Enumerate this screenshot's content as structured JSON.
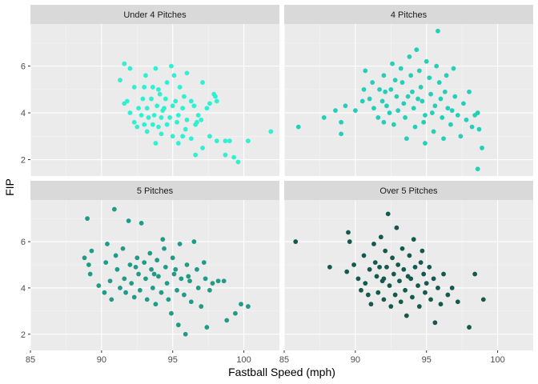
{
  "chart_data": {
    "type": "scatter",
    "xlabel": "Fastball Speed (mph)",
    "ylabel": "FIP",
    "xlim": [
      85,
      102.5
    ],
    "ylim": [
      1.3,
      7.8
    ],
    "x_ticks": [
      85,
      90,
      95,
      100
    ],
    "y_ticks": [
      2,
      4,
      6
    ],
    "grid": true,
    "legend": "none",
    "panels": [
      {
        "name": "Under 4 Pitches",
        "color": "#2ff0d0",
        "points": [
          [
            91.3,
            5.4
          ],
          [
            91.6,
            6.1
          ],
          [
            92.0,
            5.9
          ],
          [
            93.1,
            5.6
          ],
          [
            93.8,
            5.9
          ],
          [
            94.9,
            6.0
          ],
          [
            95.1,
            5.6
          ],
          [
            96.0,
            5.7
          ],
          [
            92.3,
            5.1
          ],
          [
            93.0,
            5.1
          ],
          [
            93.6,
            5.1
          ],
          [
            94.0,
            5.0
          ],
          [
            94.6,
            5.3
          ],
          [
            95.5,
            5.1
          ],
          [
            97.1,
            5.3
          ],
          [
            97.9,
            4.8
          ],
          [
            91.8,
            4.5
          ],
          [
            92.9,
            4.6
          ],
          [
            93.5,
            4.6
          ],
          [
            94.1,
            4.8
          ],
          [
            94.5,
            4.6
          ],
          [
            95.2,
            4.5
          ],
          [
            96.3,
            4.5
          ],
          [
            97.6,
            4.4
          ],
          [
            98.0,
            4.7
          ],
          [
            91.6,
            4.4
          ],
          [
            92.6,
            4.2
          ],
          [
            93.2,
            4.2
          ],
          [
            93.9,
            4.3
          ],
          [
            94.4,
            4.2
          ],
          [
            95.0,
            4.3
          ],
          [
            95.7,
            4.2
          ],
          [
            96.5,
            4.3
          ],
          [
            97.4,
            4.2
          ],
          [
            98.1,
            4.5
          ],
          [
            92.0,
            4.0
          ],
          [
            92.8,
            3.9
          ],
          [
            93.3,
            3.8
          ],
          [
            93.7,
            3.9
          ],
          [
            94.2,
            3.8
          ],
          [
            94.8,
            3.8
          ],
          [
            95.4,
            3.9
          ],
          [
            96.0,
            3.7
          ],
          [
            96.8,
            3.9
          ],
          [
            97.0,
            3.7
          ],
          [
            92.3,
            3.6
          ],
          [
            93.0,
            3.5
          ],
          [
            93.6,
            3.5
          ],
          [
            94.0,
            3.4
          ],
          [
            94.6,
            3.5
          ],
          [
            95.3,
            3.6
          ],
          [
            95.9,
            3.3
          ],
          [
            96.6,
            3.5
          ],
          [
            96.7,
            3.6
          ],
          [
            93.2,
            3.2
          ],
          [
            94.2,
            3.1
          ],
          [
            95.0,
            3.0
          ],
          [
            95.7,
            3.0
          ],
          [
            96.3,
            2.9
          ],
          [
            97.6,
            3.0
          ],
          [
            98.1,
            2.8
          ],
          [
            93.8,
            2.7
          ],
          [
            95.4,
            2.7
          ],
          [
            97.1,
            2.5
          ],
          [
            96.6,
            2.2
          ],
          [
            98.7,
            2.8
          ],
          [
            99.0,
            2.8
          ],
          [
            98.7,
            2.2
          ],
          [
            99.3,
            2.1
          ],
          [
            99.6,
            1.9
          ],
          [
            100.3,
            2.8
          ],
          [
            101.9,
            3.2
          ],
          [
            92.5,
            3.4
          ],
          [
            94.3,
            4.1
          ],
          [
            95.8,
            4.7
          ]
        ]
      },
      {
        "name": "4 Pitches",
        "color": "#25cfb7",
        "points": [
          [
            86.0,
            3.4
          ],
          [
            87.8,
            3.8
          ],
          [
            88.6,
            4.1
          ],
          [
            89.0,
            3.1
          ],
          [
            89.3,
            4.3
          ],
          [
            89.0,
            3.6
          ],
          [
            90.0,
            4.1
          ],
          [
            90.5,
            4.5
          ],
          [
            90.6,
            5.0
          ],
          [
            90.7,
            5.8
          ],
          [
            91.2,
            5.3
          ],
          [
            91.0,
            4.6
          ],
          [
            91.3,
            4.2
          ],
          [
            91.6,
            3.8
          ],
          [
            91.7,
            5.0
          ],
          [
            92.0,
            5.6
          ],
          [
            92.1,
            4.9
          ],
          [
            92.2,
            4.3
          ],
          [
            92.0,
            3.6
          ],
          [
            92.4,
            4.0
          ],
          [
            92.6,
            6.1
          ],
          [
            92.8,
            5.4
          ],
          [
            92.9,
            4.7
          ],
          [
            92.7,
            3.5
          ],
          [
            93.0,
            4.1
          ],
          [
            93.2,
            5.9
          ],
          [
            93.3,
            5.3
          ],
          [
            93.4,
            4.4
          ],
          [
            93.5,
            3.8
          ],
          [
            93.6,
            2.9
          ],
          [
            93.8,
            6.4
          ],
          [
            93.9,
            5.6
          ],
          [
            94.0,
            4.9
          ],
          [
            94.1,
            4.2
          ],
          [
            94.2,
            3.4
          ],
          [
            94.3,
            6.7
          ],
          [
            94.5,
            5.8
          ],
          [
            94.6,
            5.1
          ],
          [
            94.7,
            4.5
          ],
          [
            94.8,
            3.6
          ],
          [
            94.9,
            2.7
          ],
          [
            95.0,
            6.2
          ],
          [
            95.2,
            5.5
          ],
          [
            95.3,
            4.8
          ],
          [
            95.4,
            4.0
          ],
          [
            95.5,
            3.2
          ],
          [
            95.7,
            6.0
          ],
          [
            95.8,
            7.5
          ],
          [
            95.9,
            5.3
          ],
          [
            96.0,
            4.6
          ],
          [
            96.1,
            3.8
          ],
          [
            96.2,
            2.9
          ],
          [
            96.4,
            5.6
          ],
          [
            96.5,
            4.2
          ],
          [
            96.7,
            3.5
          ],
          [
            96.9,
            5.9
          ],
          [
            97.0,
            4.7
          ],
          [
            97.2,
            3.9
          ],
          [
            97.4,
            3.0
          ],
          [
            97.6,
            4.4
          ],
          [
            97.8,
            3.7
          ],
          [
            98.0,
            4.9
          ],
          [
            98.2,
            3.4
          ],
          [
            98.4,
            3.9
          ],
          [
            98.6,
            4.0
          ],
          [
            98.7,
            3.3
          ],
          [
            98.9,
            2.5
          ],
          [
            98.6,
            1.6
          ],
          [
            92.5,
            5.0
          ],
          [
            94.4,
            4.6
          ],
          [
            95.6,
            4.3
          ],
          [
            93.7,
            4.7
          ],
          [
            96.3,
            4.9
          ],
          [
            91.9,
            4.5
          ],
          [
            94.9,
            3.9
          ],
          [
            96.8,
            4.1
          ]
        ]
      },
      {
        "name": "5 Pitches",
        "color": "#219a87",
        "points": [
          [
            88.8,
            5.3
          ],
          [
            89.0,
            7.0
          ],
          [
            89.1,
            5.0
          ],
          [
            89.2,
            4.6
          ],
          [
            89.3,
            5.6
          ],
          [
            89.8,
            4.1
          ],
          [
            90.2,
            3.8
          ],
          [
            90.3,
            5.1
          ],
          [
            90.4,
            5.9
          ],
          [
            90.6,
            4.3
          ],
          [
            90.7,
            3.5
          ],
          [
            90.9,
            7.4
          ],
          [
            91.0,
            5.4
          ],
          [
            91.1,
            4.8
          ],
          [
            91.3,
            4.0
          ],
          [
            91.5,
            5.7
          ],
          [
            91.6,
            4.4
          ],
          [
            91.7,
            3.8
          ],
          [
            91.9,
            6.9
          ],
          [
            92.0,
            5.0
          ],
          [
            92.1,
            4.2
          ],
          [
            92.3,
            3.6
          ],
          [
            92.5,
            5.3
          ],
          [
            92.6,
            4.6
          ],
          [
            92.7,
            3.9
          ],
          [
            92.8,
            6.8
          ],
          [
            93.0,
            5.1
          ],
          [
            93.1,
            4.4
          ],
          [
            93.2,
            3.5
          ],
          [
            93.4,
            5.5
          ],
          [
            93.5,
            4.8
          ],
          [
            93.6,
            4.0
          ],
          [
            93.8,
            3.3
          ],
          [
            93.9,
            5.2
          ],
          [
            94.0,
            4.5
          ],
          [
            94.2,
            3.8
          ],
          [
            94.3,
            6.1
          ],
          [
            94.5,
            4.9
          ],
          [
            94.6,
            4.2
          ],
          [
            94.7,
            3.5
          ],
          [
            94.9,
            2.9
          ],
          [
            95.0,
            5.3
          ],
          [
            95.1,
            4.6
          ],
          [
            95.3,
            3.9
          ],
          [
            95.4,
            2.4
          ],
          [
            95.5,
            5.9
          ],
          [
            95.6,
            4.4
          ],
          [
            95.8,
            3.7
          ],
          [
            95.9,
            2.0
          ],
          [
            96.0,
            5.0
          ],
          [
            96.2,
            4.3
          ],
          [
            96.3,
            3.4
          ],
          [
            96.5,
            6.0
          ],
          [
            96.7,
            4.8
          ],
          [
            96.8,
            4.0
          ],
          [
            97.0,
            3.2
          ],
          [
            97.2,
            5.1
          ],
          [
            97.3,
            4.4
          ],
          [
            97.6,
            3.9
          ],
          [
            97.8,
            4.2
          ],
          [
            98.2,
            4.3
          ],
          [
            98.6,
            4.3
          ],
          [
            98.8,
            2.6
          ],
          [
            99.4,
            2.9
          ],
          [
            99.8,
            3.3
          ],
          [
            100.3,
            3.2
          ],
          [
            97.4,
            2.3
          ],
          [
            92.4,
            4.9
          ],
          [
            93.7,
            4.6
          ],
          [
            94.4,
            5.7
          ],
          [
            95.2,
            4.8
          ],
          [
            96.1,
            4.5
          ]
        ]
      },
      {
        "name": "Over 5 Pitches",
        "color": "#15584d",
        "points": [
          [
            85.8,
            6.0
          ],
          [
            88.2,
            4.9
          ],
          [
            89.4,
            4.7
          ],
          [
            89.5,
            6.4
          ],
          [
            89.6,
            6.0
          ],
          [
            89.9,
            5.0
          ],
          [
            90.2,
            4.4
          ],
          [
            90.4,
            3.9
          ],
          [
            90.6,
            5.4
          ],
          [
            90.7,
            4.2
          ],
          [
            90.9,
            3.7
          ],
          [
            91.0,
            4.8
          ],
          [
            91.1,
            3.3
          ],
          [
            91.3,
            5.9
          ],
          [
            91.4,
            5.1
          ],
          [
            91.5,
            4.5
          ],
          [
            91.6,
            3.8
          ],
          [
            91.8,
            6.2
          ],
          [
            91.9,
            4.3
          ],
          [
            92.0,
            3.5
          ],
          [
            92.1,
            5.6
          ],
          [
            92.2,
            4.9
          ],
          [
            92.3,
            7.2
          ],
          [
            92.4,
            4.1
          ],
          [
            92.5,
            3.2
          ],
          [
            92.6,
            5.3
          ],
          [
            92.7,
            4.6
          ],
          [
            92.8,
            3.7
          ],
          [
            92.9,
            6.6
          ],
          [
            93.0,
            5.0
          ],
          [
            93.1,
            4.3
          ],
          [
            93.2,
            3.4
          ],
          [
            93.3,
            5.7
          ],
          [
            93.4,
            4.8
          ],
          [
            93.5,
            3.9
          ],
          [
            93.6,
            2.8
          ],
          [
            93.8,
            5.4
          ],
          [
            93.9,
            4.4
          ],
          [
            94.0,
            3.6
          ],
          [
            94.1,
            6.1
          ],
          [
            94.2,
            4.9
          ],
          [
            94.4,
            4.1
          ],
          [
            94.5,
            3.2
          ],
          [
            94.7,
            5.6
          ],
          [
            94.8,
            4.6
          ],
          [
            94.9,
            3.8
          ],
          [
            95.0,
            4.2
          ],
          [
            95.2,
            4.9
          ],
          [
            95.3,
            3.5
          ],
          [
            95.5,
            4.4
          ],
          [
            95.6,
            2.5
          ],
          [
            95.8,
            4.0
          ],
          [
            96.0,
            3.3
          ],
          [
            96.2,
            4.6
          ],
          [
            96.5,
            3.7
          ],
          [
            96.8,
            4.0
          ],
          [
            97.2,
            3.4
          ],
          [
            98.0,
            2.3
          ],
          [
            98.4,
            4.6
          ],
          [
            99.0,
            3.5
          ],
          [
            91.7,
            4.9
          ],
          [
            93.7,
            4.5
          ],
          [
            94.6,
            5.1
          ],
          [
            92.0,
            4.4
          ]
        ]
      }
    ]
  }
}
